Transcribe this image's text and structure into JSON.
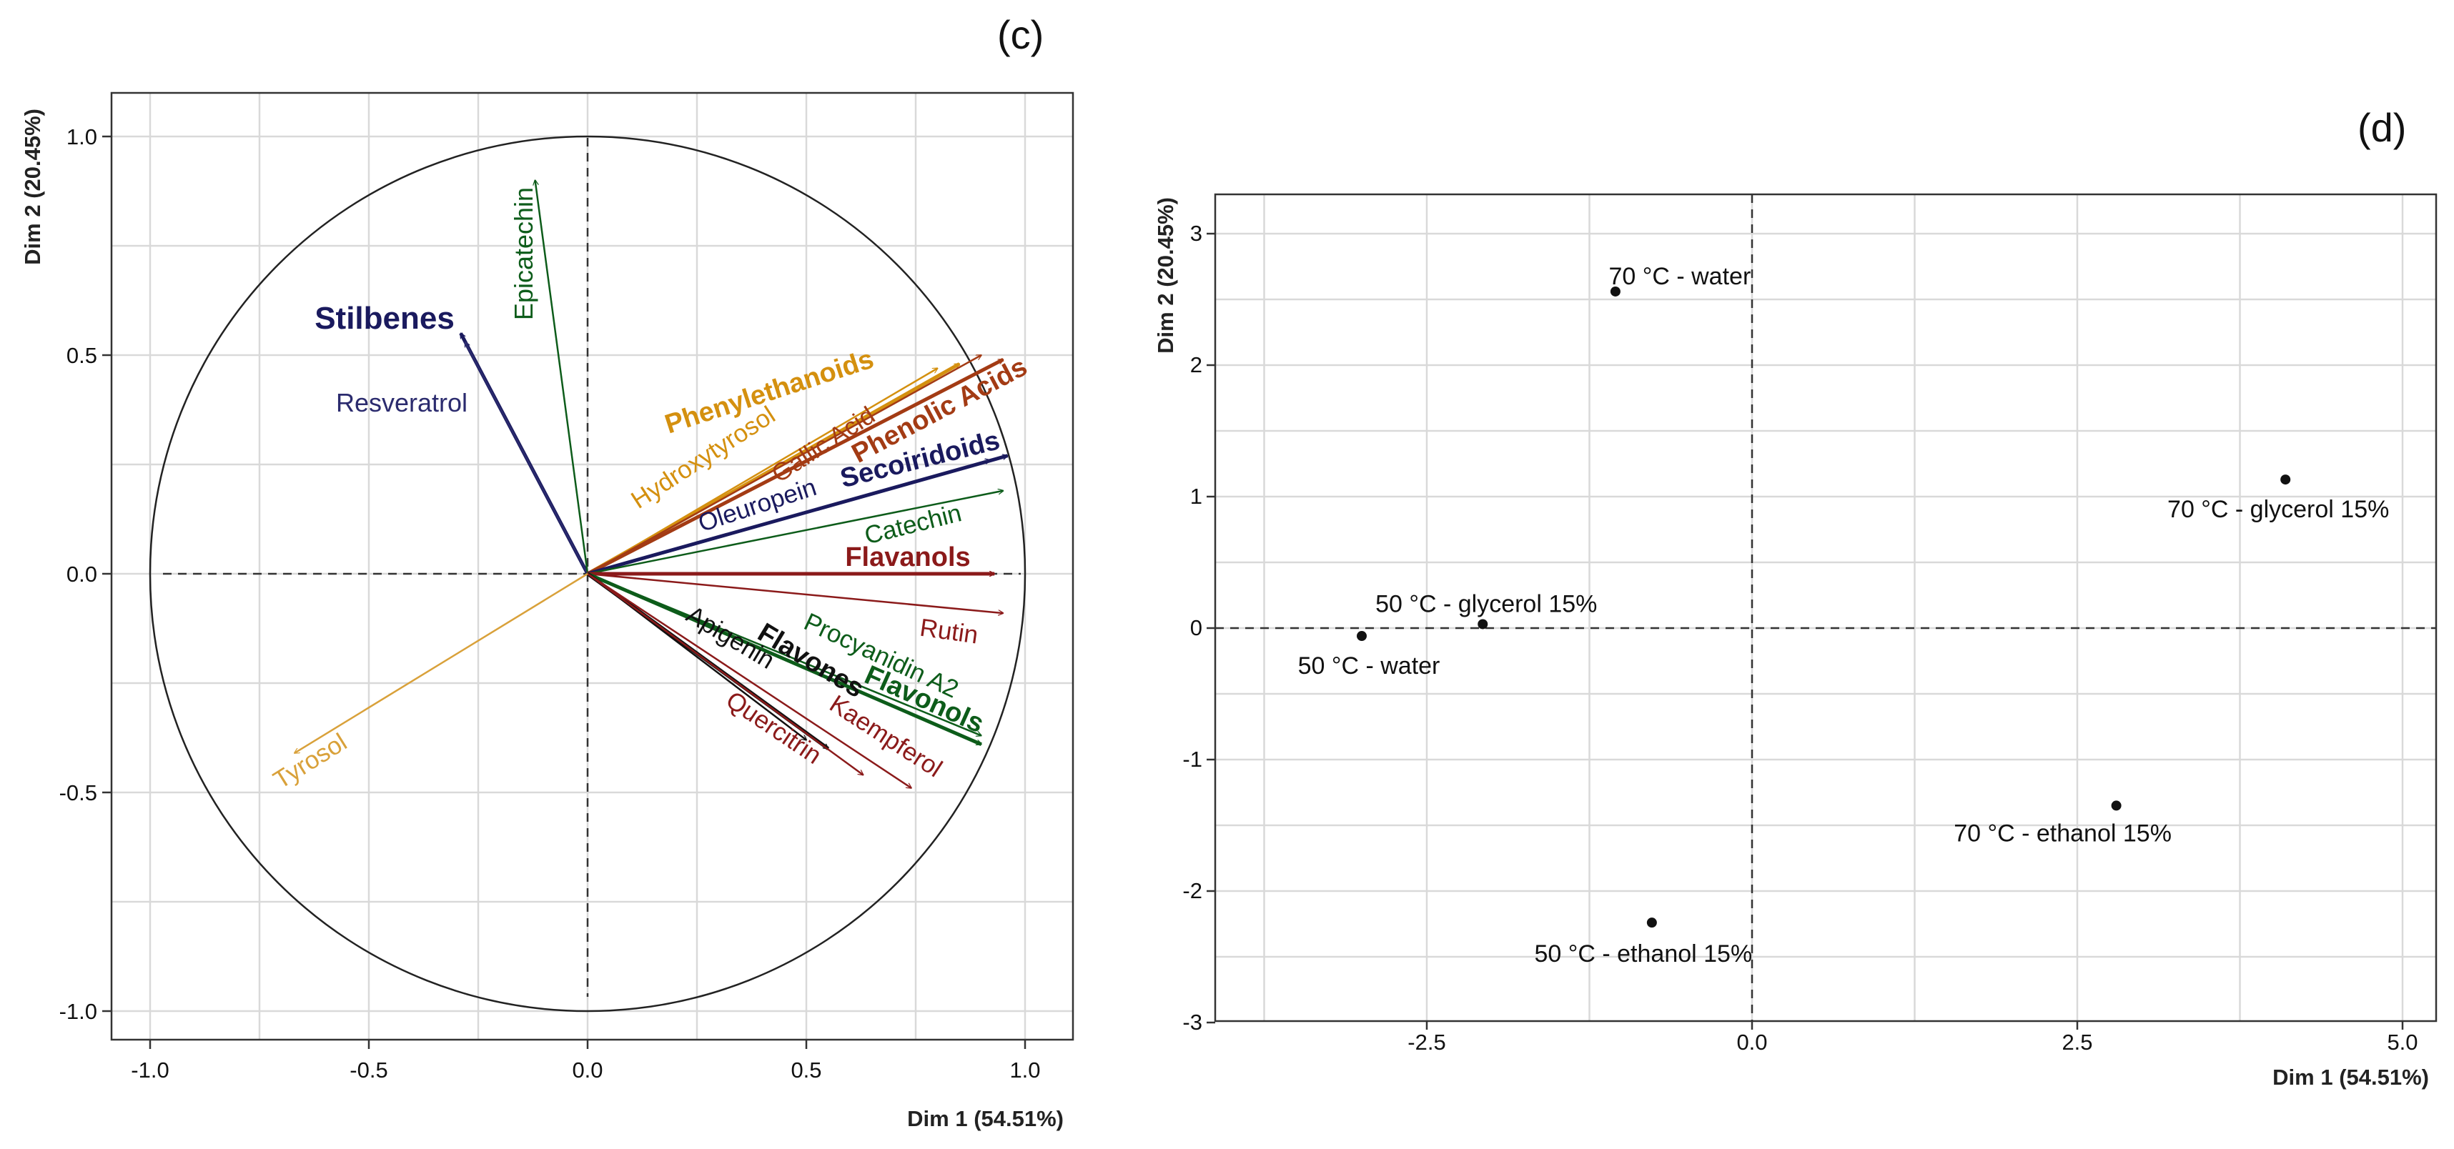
{
  "chart_data": [
    {
      "type": "scatter",
      "subtype": "pca-variable-correlation-circle",
      "panel_label": "(c)",
      "xlabel": "Dim 1 (54.51%)",
      "ylabel": "Dim 2 (20.45%)",
      "xlim": [
        -1.1,
        1.1
      ],
      "ylim": [
        -1.1,
        1.1
      ],
      "x_ticks": [
        "-1.0",
        "-0.5",
        "0.0",
        "0.5",
        "1.0"
      ],
      "y_ticks": [
        "-1.0",
        "-0.5",
        "0.0",
        "0.5",
        "1.0"
      ],
      "grid": true,
      "colors": {
        "stilbenes": "#1a1a5e",
        "flavanols_green": "#0d5c1a",
        "phenyl": "#d4900f",
        "phenolic": "#a33b14",
        "secoiridoids": "#1a1a5e",
        "darkred": "#8b1a1a",
        "tyrosol": "#d9a13a"
      },
      "vectors": [
        {
          "label": "Stilbenes",
          "x": -0.29,
          "y": 0.55,
          "bold": true,
          "color": "#1a1a5e"
        },
        {
          "label": "Resveratrol",
          "x": -0.28,
          "y": 0.53,
          "bold": false,
          "color": "#2b2b6e"
        },
        {
          "label": "Epicatechin",
          "x": -0.12,
          "y": 0.9,
          "bold": false,
          "color": "#0d5c1a"
        },
        {
          "label": "Phenylethanoids",
          "x": 0.85,
          "y": 0.48,
          "bold": true,
          "color": "#d4900f"
        },
        {
          "label": "Hydroxytyrosol",
          "x": 0.8,
          "y": 0.47,
          "bold": false,
          "color": "#d4900f"
        },
        {
          "label": "Gallic Acid",
          "x": 0.9,
          "y": 0.5,
          "bold": false,
          "color": "#a33b14"
        },
        {
          "label": "Phenolic Acids",
          "x": 0.95,
          "y": 0.49,
          "bold": true,
          "color": "#a33b14"
        },
        {
          "label": "Secoiridoids",
          "x": 0.96,
          "y": 0.27,
          "bold": true,
          "color": "#1a1a5e"
        },
        {
          "label": "Oleuropein",
          "x": 0.92,
          "y": 0.26,
          "bold": false,
          "color": "#1a1a5e"
        },
        {
          "label": "Catechin",
          "x": 0.95,
          "y": 0.19,
          "bold": false,
          "color": "#0d5c1a"
        },
        {
          "label": "Flavanols",
          "x": 0.93,
          "y": 0.0,
          "bold": true,
          "color": "#8b1a1a"
        },
        {
          "label": "Rutin",
          "x": 0.95,
          "y": -0.09,
          "bold": false,
          "color": "#8b1a1a"
        },
        {
          "label": "Procyanidin A2",
          "x": 0.9,
          "y": -0.37,
          "bold": false,
          "color": "#0d5c1a"
        },
        {
          "label": "Flavonols",
          "x": 0.9,
          "y": -0.39,
          "bold": true,
          "color": "#0d5c1a"
        },
        {
          "label": "Flavones",
          "x": 0.55,
          "y": -0.4,
          "bold": true,
          "color": "#111111"
        },
        {
          "label": "Apigenin",
          "x": 0.5,
          "y": -0.38,
          "bold": false,
          "color": "#111111"
        },
        {
          "label": "Quercitrin",
          "x": 0.63,
          "y": -0.46,
          "bold": false,
          "color": "#8b1a1a"
        },
        {
          "label": "Kaempferol",
          "x": 0.74,
          "y": -0.49,
          "bold": false,
          "color": "#8b1a1a"
        },
        {
          "label": "Tyrosol",
          "x": -0.67,
          "y": -0.41,
          "bold": false,
          "color": "#d9a13a"
        }
      ]
    },
    {
      "type": "scatter",
      "subtype": "pca-individuals",
      "panel_label": "(d)",
      "xlabel": "Dim 1 (54.51%)",
      "ylabel": "Dim 2 (20.45%)",
      "xlim": [
        -3.8,
        5.1
      ],
      "ylim": [
        -3.0,
        3.3
      ],
      "x_ticks": [
        "-2.5",
        "0.0",
        "2.5",
        "5.0"
      ],
      "y_ticks": [
        "-3",
        "-2",
        "-1",
        "0",
        "1",
        "2",
        "3"
      ],
      "grid": true,
      "points": [
        {
          "label": "70 °C - water",
          "x": -1.05,
          "y": 2.56
        },
        {
          "label": "70 °C - glycerol 15%",
          "x": 4.1,
          "y": 1.13
        },
        {
          "label": "50 °C - glycerol 15%",
          "x": -2.07,
          "y": 0.03
        },
        {
          "label": "50 °C - water",
          "x": -3.0,
          "y": -0.06
        },
        {
          "label": "70 °C - ethanol 15%",
          "x": 2.8,
          "y": -1.35
        },
        {
          "label": "50 °C - ethanol 15%",
          "x": -0.77,
          "y": -2.24
        }
      ]
    }
  ]
}
